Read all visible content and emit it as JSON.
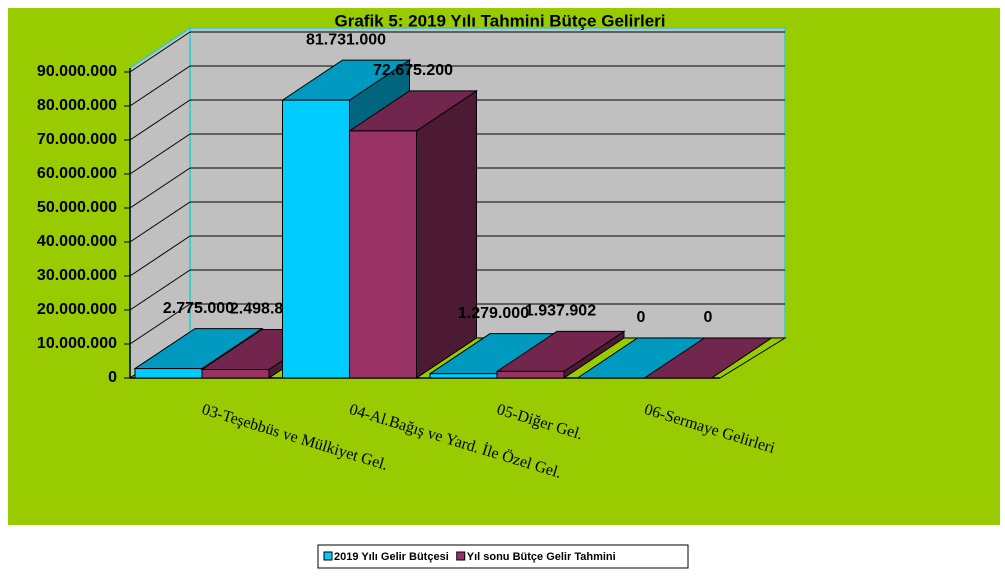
{
  "chart_data": {
    "type": "bar3d",
    "title": "Grafik 5: 2019 Yılı Tahmini Bütçe Gelirleri",
    "categories": [
      "03-Teşebbüs ve Mülkiyet Gel.",
      "04-Al.Bağış ve Yard. İle Özel Gel.",
      "05-Diğer Gel.",
      "06-Sermaye Gelirleri"
    ],
    "series": [
      {
        "name": "2019 Yılı Gelir Bütçesi",
        "color": "#00ccff",
        "values": [
          2775000,
          81731000,
          1279000,
          0
        ],
        "value_labels": [
          "2.775.000",
          "81.731.000",
          "1.279.000",
          "0"
        ]
      },
      {
        "name": "Yıl sonu Bütçe Gelir Tahmini",
        "color": "#993366",
        "values": [
          2498800,
          72675200,
          1937902,
          0
        ],
        "value_labels": [
          "2.498.800",
          "72.675.200",
          "1.937.902",
          "0"
        ]
      }
    ],
    "ylim": [
      0,
      90000000
    ],
    "yticks": [
      0,
      {
        "value": 10000000,
        "label": "10.000.000"
      },
      {
        "value": 20000000,
        "label": "20.000.000"
      },
      {
        "value": 30000000,
        "label": "30.000.000"
      },
      {
        "value": 40000000,
        "label": "40.000.000"
      },
      {
        "value": 50000000,
        "label": "50.000.000"
      },
      {
        "value": 60000000,
        "label": "60.000.000"
      },
      {
        "value": 70000000,
        "label": "70.000.000"
      },
      {
        "value": 80000000,
        "label": "80.000.000"
      },
      {
        "value": 90000000,
        "label": "90.000.000"
      }
    ],
    "grid": true,
    "legend": "bottom"
  }
}
